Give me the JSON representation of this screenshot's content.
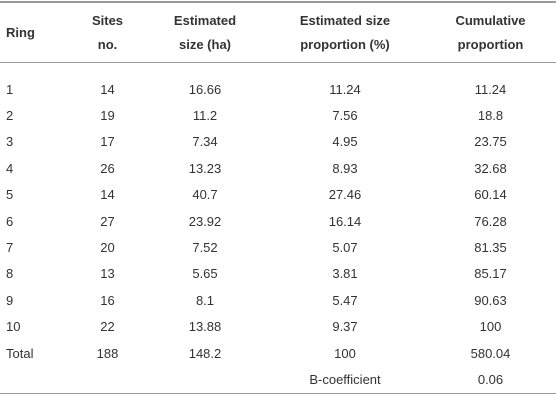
{
  "table": {
    "header": [
      [
        "Ring"
      ],
      [
        "Sites",
        "no."
      ],
      [
        "Estimated",
        "size (ha)"
      ],
      [
        "Estimated size",
        "proportion (%)"
      ],
      [
        "Cumulative",
        "proportion"
      ]
    ],
    "rows": [
      [
        "1",
        "14",
        "16.66",
        "11.24",
        "11.24"
      ],
      [
        "2",
        "19",
        "11.2",
        "7.56",
        "18.8"
      ],
      [
        "3",
        "17",
        "7.34",
        "4.95",
        "23.75"
      ],
      [
        "4",
        "26",
        "13.23",
        "8.93",
        "32.68"
      ],
      [
        "5",
        "14",
        "40.7",
        "27.46",
        "60.14"
      ],
      [
        "6",
        "27",
        "23.92",
        "16.14",
        "76.28"
      ],
      [
        "7",
        "20",
        "7.52",
        "5.07",
        "81.35"
      ],
      [
        "8",
        "13",
        "5.65",
        "3.81",
        "85.17"
      ],
      [
        "9",
        "16",
        "8.1",
        "5.47",
        "90.63"
      ],
      [
        "10",
        "22",
        "13.88",
        "9.37",
        "100"
      ],
      [
        "Total",
        "188",
        "148.2",
        "100",
        "580.04"
      ]
    ],
    "b_coefficient": {
      "label": "B-coefficient",
      "value": "0.06"
    }
  }
}
